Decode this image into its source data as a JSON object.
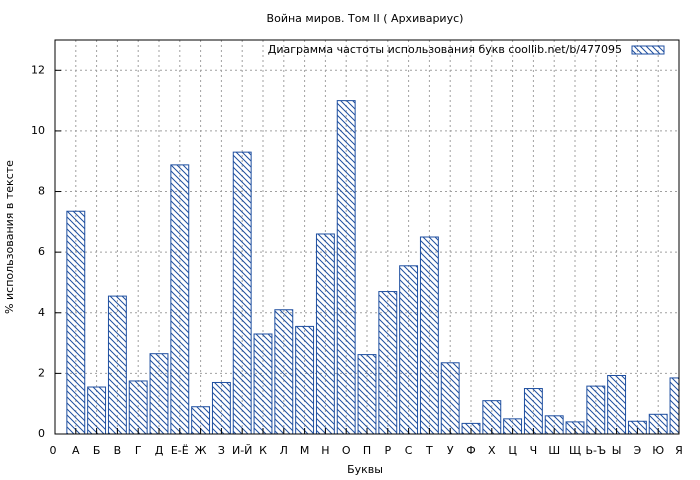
{
  "chart_data": {
    "type": "bar",
    "title": "Война миров. Том II ( Архивариус)",
    "x_label": "Буквы",
    "y_label": "% использования в тексте",
    "categories": [
      "А",
      "Б",
      "В",
      "Г",
      "Д",
      "Е-Ё",
      "Ж",
      "З",
      "И-Й",
      "К",
      "Л",
      "М",
      "Н",
      "О",
      "П",
      "Р",
      "С",
      "Т",
      "У",
      "Ф",
      "Х",
      "Ц",
      "Ч",
      "Ш",
      "Щ",
      "Ь-Ъ",
      "Ы",
      "Э",
      "Ю",
      "Я"
    ],
    "series": [
      {
        "name": "Диаграмма частоты использования букв  coollib.net/b/477095",
        "color": "#1f4fa0",
        "values": [
          7.35,
          1.55,
          4.55,
          1.75,
          2.65,
          8.88,
          0.9,
          1.7,
          9.3,
          3.3,
          4.1,
          3.55,
          6.6,
          11.0,
          2.62,
          4.7,
          5.55,
          6.5,
          2.35,
          0.35,
          1.1,
          0.5,
          1.5,
          0.6,
          0.4,
          1.58,
          1.93,
          0.42,
          0.65,
          1.85
        ]
      }
    ],
    "xlim": [
      0,
      30
    ],
    "xticks": [
      0
    ],
    "ylim": [
      0,
      13
    ],
    "yticks": [
      0,
      2,
      4,
      6,
      8,
      10,
      12
    ],
    "grid": true,
    "legend": "top-right"
  }
}
